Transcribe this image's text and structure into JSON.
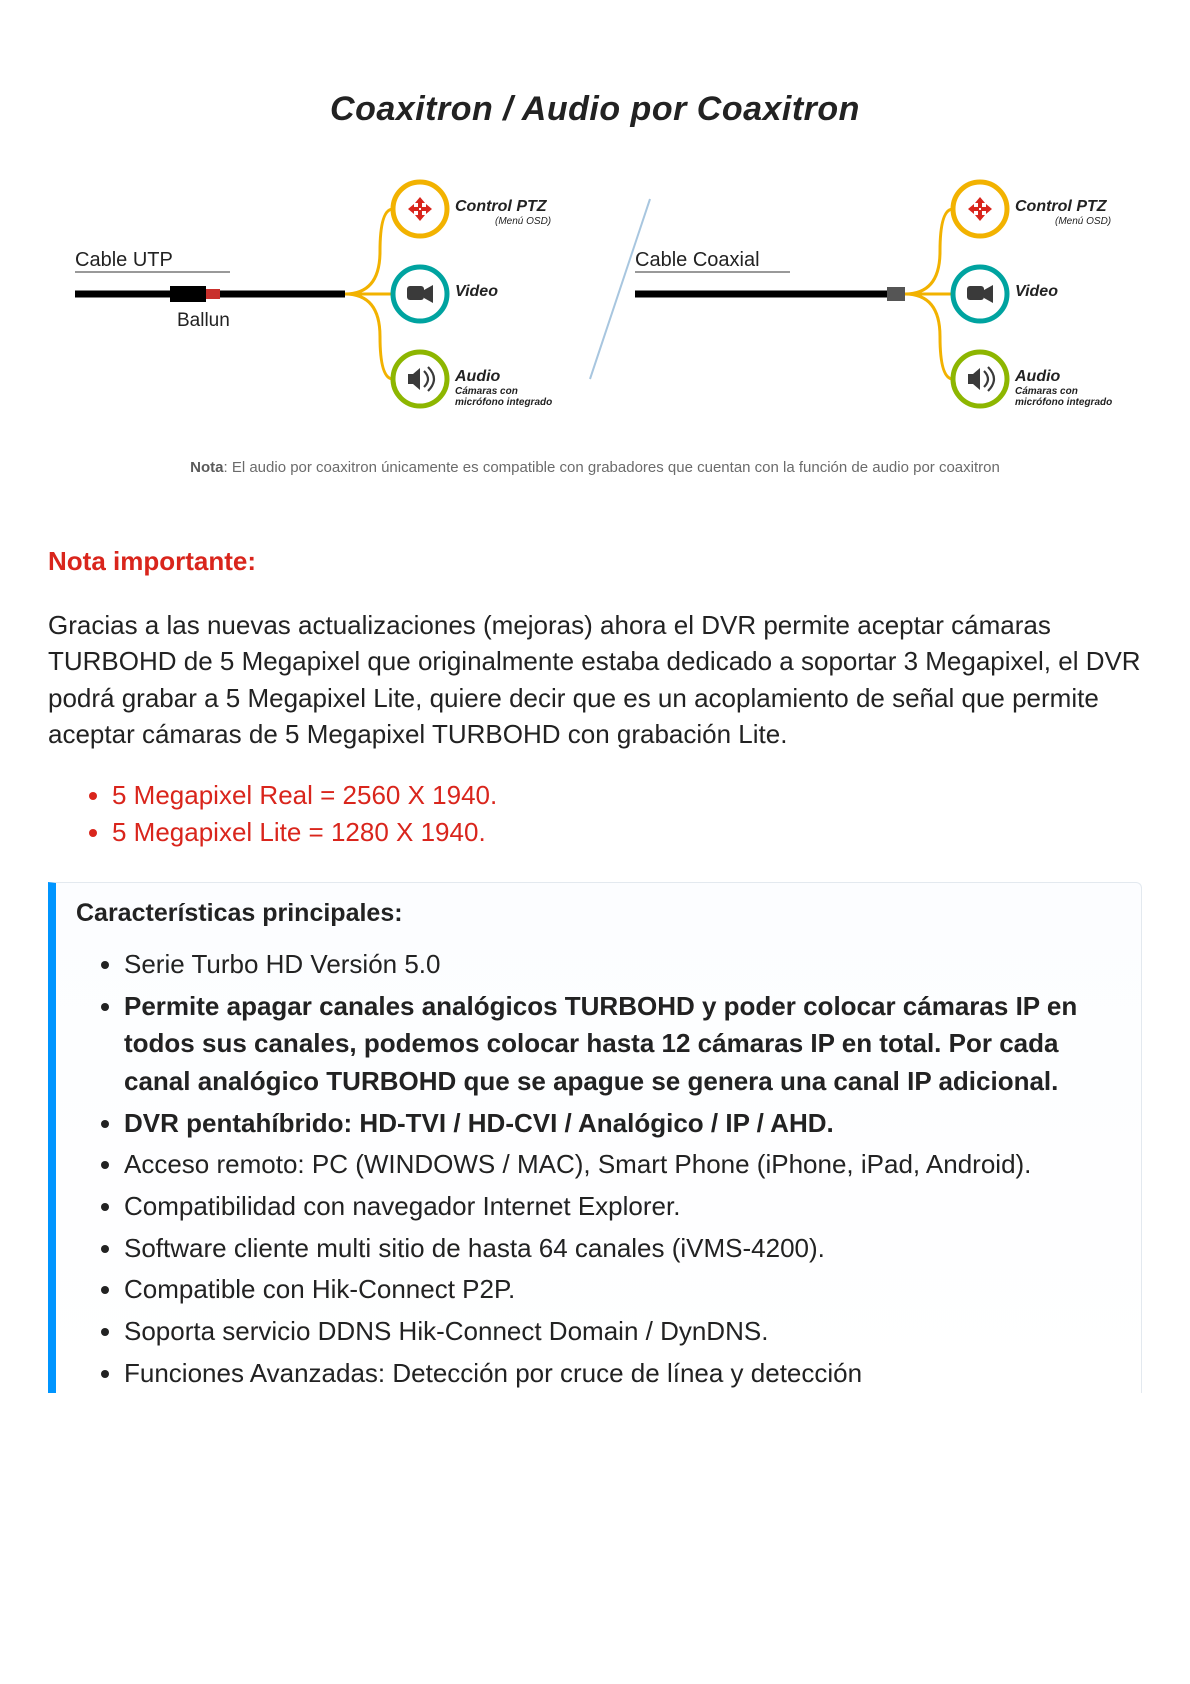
{
  "diagram": {
    "title": "Coaxitron / Audio por Coaxitron",
    "title_fontsize": 34,
    "title_color": "#111111",
    "left": {
      "label_top": "Cable UTP",
      "label_bottom": "Ballun",
      "cable_color": "#000000",
      "connector_color": "#c9302c",
      "divider_color": "#a8c6df"
    },
    "right": {
      "label_top": "Cable Coaxial",
      "cable_color": "#000000"
    },
    "nodes": [
      {
        "icon": "ptz",
        "ring": "#f2b200",
        "label": "Control PTZ",
        "sub": "(Menú OSD)"
      },
      {
        "icon": "video",
        "ring": "#00a3a0",
        "label": "Video",
        "sub": ""
      },
      {
        "icon": "audio",
        "ring": "#8db600",
        "label": "Audio",
        "sub": "Cámaras con micrófono integrado"
      }
    ],
    "curve_color": "#f2b200",
    "note_prefix": "Nota",
    "note_text": ": El audio por coaxitron únicamente es compatible con grabadores que cuentan con la función de audio por coaxitron"
  },
  "nota": {
    "title": "Nota importante:",
    "title_color": "#d9251c",
    "body": "Gracias a las nuevas actualizaciones (mejoras) ahora el DVR permite aceptar cámaras TURBOHD de 5 Megapixel que originalmente estaba dedicado a soportar 3 Megapixel, el DVR podrá grabar a 5 Megapixel Lite, quiere decir que es un acoplamiento de señal que permite aceptar cámaras de 5 Megapixel TURBOHD con grabación Lite.",
    "bullets": [
      "5 Megapixel Real = 2560 X 1940.",
      "5 Megapixel Lite = 1280 X 1940."
    ],
    "bullet_color": "#d9251c"
  },
  "features": {
    "title": "Características principales:",
    "border_color": "#0095ff",
    "items": [
      {
        "text": "Serie Turbo HD Versión 5.0",
        "bold": false
      },
      {
        "text": "Permite apagar canales analógicos TURBOHD y poder colocar cámaras IP en todos sus canales, podemos colocar hasta 12 cámaras IP en total. Por cada canal analógico TURBOHD que se apague se genera una canal IP adicional.",
        "bold": true
      },
      {
        "text": "DVR pentahíbrido: HD-TVI / HD-CVI / Analógico / IP / AHD.",
        "bold": true
      },
      {
        "text": "Acceso remoto: PC (WINDOWS / MAC), Smart Phone (iPhone, iPad, Android).",
        "bold": false
      },
      {
        "text": "Compatibilidad con navegador Internet Explorer.",
        "bold": false
      },
      {
        "text": "Software cliente multi sitio de hasta 64 canales (iVMS-4200).",
        "bold": false
      },
      {
        "text": "Compatible con Hik-Connect P2P.",
        "bold": false
      },
      {
        "text": "Soporta servicio DDNS Hik-Connect Domain / DynDNS.",
        "bold": false
      },
      {
        "text": "Funciones Avanzadas: Detección por cruce de línea y detección",
        "bold": false
      }
    ]
  }
}
